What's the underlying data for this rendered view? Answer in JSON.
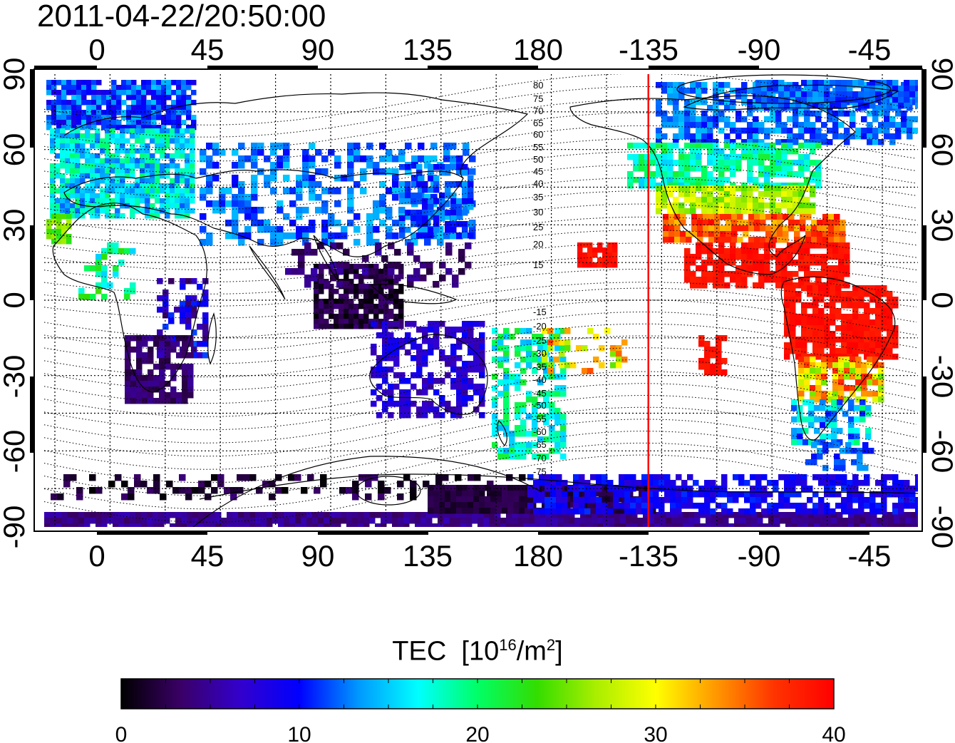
{
  "timestamp": "2011-04-22/20:50:00",
  "map": {
    "top_lon_labels": [
      "0",
      "45",
      "90",
      "135",
      "180",
      "-135",
      "-90",
      "-45"
    ],
    "bottom_lon_labels": [
      "0",
      "45",
      "90",
      "135",
      "180",
      "-135",
      "-90",
      "-45"
    ],
    "left_lat_labels": [
      "90",
      "60",
      "30",
      "0",
      "-30",
      "-60",
      "-90"
    ],
    "right_lat_labels": [
      "90",
      "60",
      "30",
      "0",
      "-30",
      "-60",
      "-90"
    ],
    "contour_labels_north": [
      "80",
      "75",
      "70",
      "65",
      "60",
      "55",
      "50",
      "45",
      "40",
      "35",
      "30",
      "25",
      "20",
      "15"
    ],
    "contour_labels_south": [
      "-15",
      "-20",
      "-25",
      "-30",
      "-35",
      "-40",
      "-45",
      "-50",
      "-55",
      "-60",
      "-65",
      "-70",
      "-75"
    ],
    "marker_line_lon": -135,
    "marker_color": "#ff0000"
  },
  "colorbar": {
    "title_main": "TEC",
    "title_unit_open": "[10",
    "title_unit_exp": "16",
    "title_unit_mid": "/m",
    "title_unit_exp2": "2",
    "title_unit_close": "]",
    "tick_labels": [
      "0",
      "10",
      "20",
      "30",
      "40"
    ],
    "min": 0,
    "max": 40,
    "colors": [
      "#000000",
      "#3a0066",
      "#3300cc",
      "#0000ff",
      "#0099ff",
      "#00ffff",
      "#00ff66",
      "#33dd00",
      "#aaee00",
      "#ffff00",
      "#ff9900",
      "#ff3300",
      "#ff0000"
    ]
  }
}
